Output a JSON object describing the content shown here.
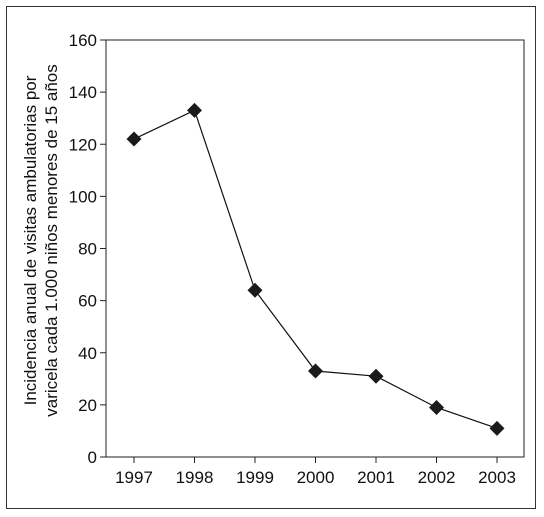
{
  "chart_data": {
    "type": "line",
    "title": "",
    "xlabel": "",
    "ylabel_lines": [
      "Incidencia anual de visitas ambulatorias por",
      "varicela cada 1.000 niños menores de 15 años"
    ],
    "x": [
      "1997",
      "1998",
      "1999",
      "2000",
      "2001",
      "2002",
      "2003"
    ],
    "series": [
      {
        "values": [
          122,
          133,
          64,
          33,
          31,
          19,
          11
        ]
      }
    ],
    "ylim": [
      0,
      160
    ],
    "yticks": [
      0,
      20,
      40,
      60,
      80,
      100,
      120,
      140,
      160
    ],
    "marker": "diamond",
    "grid": false,
    "legend": "none",
    "colors": {
      "line": "#111111",
      "marker": "#1a1a1a",
      "axis": "#222222"
    }
  }
}
